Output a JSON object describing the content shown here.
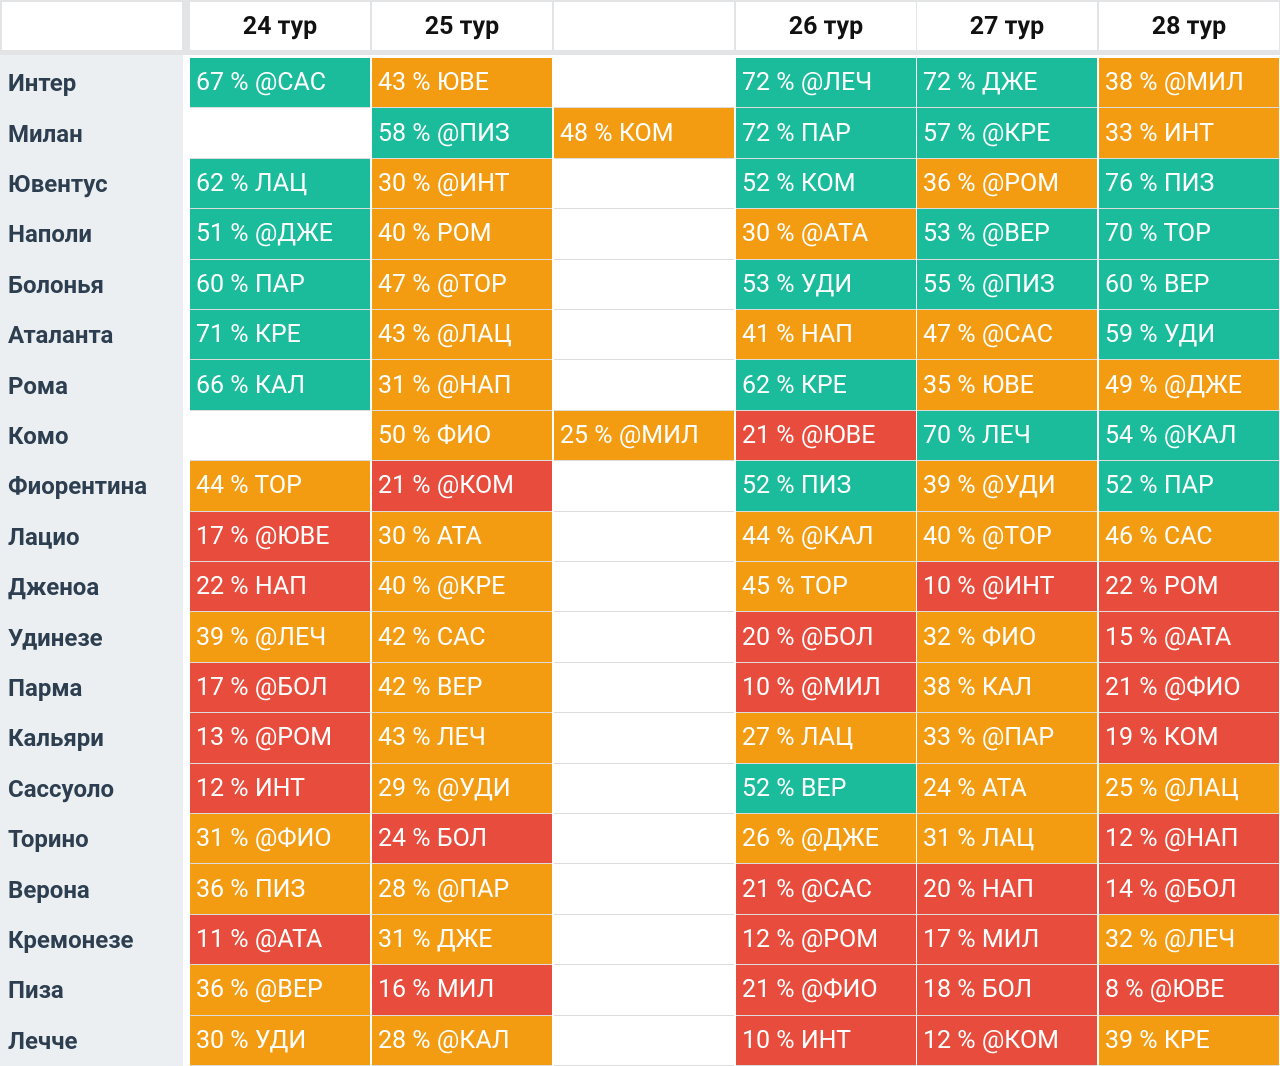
{
  "table": {
    "columns": [
      null,
      "24 тур",
      "25 тур",
      null,
      "26 тур",
      "27 тур",
      "28 тур"
    ],
    "rows": [
      {
        "team": "Интер",
        "cells": [
          {
            "text": "67 % @САС",
            "color": "#1abc9c"
          },
          {
            "text": "43 % ЮВЕ",
            "color": "#f39c12"
          },
          null,
          {
            "text": "72 % @ЛЕЧ",
            "color": "#1abc9c"
          },
          {
            "text": "72 % ДЖЕ",
            "color": "#1abc9c"
          },
          {
            "text": "38 % @МИЛ",
            "color": "#f39c12"
          }
        ]
      },
      {
        "team": "Милан",
        "cells": [
          null,
          {
            "text": "58 % @ПИЗ",
            "color": "#1abc9c"
          },
          {
            "text": "48 % КОМ",
            "color": "#f39c12"
          },
          {
            "text": "72 % ПАР",
            "color": "#1abc9c"
          },
          {
            "text": "57 % @КРЕ",
            "color": "#1abc9c"
          },
          {
            "text": "33 % ИНТ",
            "color": "#f39c12"
          }
        ]
      },
      {
        "team": "Ювентус",
        "cells": [
          {
            "text": "62 % ЛАЦ",
            "color": "#1abc9c"
          },
          {
            "text": "30 % @ИНТ",
            "color": "#f39c12"
          },
          null,
          {
            "text": "52 % КОМ",
            "color": "#1abc9c"
          },
          {
            "text": "36 % @РОМ",
            "color": "#f39c12"
          },
          {
            "text": "76 % ПИЗ",
            "color": "#1abc9c"
          }
        ]
      },
      {
        "team": "Наполи",
        "cells": [
          {
            "text": "51 % @ДЖЕ",
            "color": "#1abc9c"
          },
          {
            "text": "40 % РОМ",
            "color": "#f39c12"
          },
          null,
          {
            "text": "30 % @АТА",
            "color": "#f39c12"
          },
          {
            "text": "53 % @ВЕР",
            "color": "#1abc9c"
          },
          {
            "text": "70 % ТОР",
            "color": "#1abc9c"
          }
        ]
      },
      {
        "team": "Болонья",
        "cells": [
          {
            "text": "60 % ПАР",
            "color": "#1abc9c"
          },
          {
            "text": "47 % @ТОР",
            "color": "#f39c12"
          },
          null,
          {
            "text": "53 % УДИ",
            "color": "#1abc9c"
          },
          {
            "text": "55 % @ПИЗ",
            "color": "#1abc9c"
          },
          {
            "text": "60 % ВЕР",
            "color": "#1abc9c"
          }
        ]
      },
      {
        "team": "Аталанта",
        "cells": [
          {
            "text": "71 % КРЕ",
            "color": "#1abc9c"
          },
          {
            "text": "43 % @ЛАЦ",
            "color": "#f39c12"
          },
          null,
          {
            "text": "41 % НАП",
            "color": "#f39c12"
          },
          {
            "text": "47 % @САС",
            "color": "#f39c12"
          },
          {
            "text": "59 % УДИ",
            "color": "#1abc9c"
          }
        ]
      },
      {
        "team": "Рома",
        "cells": [
          {
            "text": "66 % КАЛ",
            "color": "#1abc9c"
          },
          {
            "text": "31 % @НАП",
            "color": "#f39c12"
          },
          null,
          {
            "text": "62 % КРЕ",
            "color": "#1abc9c"
          },
          {
            "text": "35 % ЮВЕ",
            "color": "#f39c12"
          },
          {
            "text": "49 % @ДЖЕ",
            "color": "#f39c12"
          }
        ]
      },
      {
        "team": "Комо",
        "cells": [
          null,
          {
            "text": "50 % ФИО",
            "color": "#f39c12"
          },
          {
            "text": "25 % @МИЛ",
            "color": "#f39c12"
          },
          {
            "text": "21 % @ЮВЕ",
            "color": "#e74c3c"
          },
          {
            "text": "70 % ЛЕЧ",
            "color": "#1abc9c"
          },
          {
            "text": "54 % @КАЛ",
            "color": "#1abc9c"
          }
        ]
      },
      {
        "team": "Фиорентина",
        "cells": [
          {
            "text": "44 % ТОР",
            "color": "#f39c12"
          },
          {
            "text": "21 % @КОМ",
            "color": "#e74c3c"
          },
          null,
          {
            "text": "52 % ПИЗ",
            "color": "#1abc9c"
          },
          {
            "text": "39 % @УДИ",
            "color": "#f39c12"
          },
          {
            "text": "52 % ПАР",
            "color": "#1abc9c"
          }
        ]
      },
      {
        "team": "Лацио",
        "cells": [
          {
            "text": "17 % @ЮВЕ",
            "color": "#e74c3c"
          },
          {
            "text": "30 % АТА",
            "color": "#f39c12"
          },
          null,
          {
            "text": "44 % @КАЛ",
            "color": "#f39c12"
          },
          {
            "text": "40 % @ТОР",
            "color": "#f39c12"
          },
          {
            "text": "46 % САС",
            "color": "#f39c12"
          }
        ]
      },
      {
        "team": "Дженоа",
        "cells": [
          {
            "text": "22 % НАП",
            "color": "#e74c3c"
          },
          {
            "text": "40 % @КРЕ",
            "color": "#f39c12"
          },
          null,
          {
            "text": "45 % ТОР",
            "color": "#f39c12"
          },
          {
            "text": "10 % @ИНТ",
            "color": "#e74c3c"
          },
          {
            "text": "22 % РОМ",
            "color": "#e74c3c"
          }
        ]
      },
      {
        "team": "Удинезе",
        "cells": [
          {
            "text": "39 % @ЛЕЧ",
            "color": "#f39c12"
          },
          {
            "text": "42 % САС",
            "color": "#f39c12"
          },
          null,
          {
            "text": "20 % @БОЛ",
            "color": "#e74c3c"
          },
          {
            "text": "32 % ФИО",
            "color": "#f39c12"
          },
          {
            "text": "15 % @АТА",
            "color": "#e74c3c"
          }
        ]
      },
      {
        "team": "Парма",
        "cells": [
          {
            "text": "17 % @БОЛ",
            "color": "#e74c3c"
          },
          {
            "text": "42 % ВЕР",
            "color": "#f39c12"
          },
          null,
          {
            "text": "10 % @МИЛ",
            "color": "#e74c3c"
          },
          {
            "text": "38 % КАЛ",
            "color": "#f39c12"
          },
          {
            "text": "21 % @ФИО",
            "color": "#e74c3c"
          }
        ]
      },
      {
        "team": "Кальяри",
        "cells": [
          {
            "text": "13 % @РОМ",
            "color": "#e74c3c"
          },
          {
            "text": "43 % ЛЕЧ",
            "color": "#f39c12"
          },
          null,
          {
            "text": "27 % ЛАЦ",
            "color": "#f39c12"
          },
          {
            "text": "33 % @ПАР",
            "color": "#f39c12"
          },
          {
            "text": "19 % КОМ",
            "color": "#e74c3c"
          }
        ]
      },
      {
        "team": "Сассуоло",
        "cells": [
          {
            "text": "12 % ИНТ",
            "color": "#e74c3c"
          },
          {
            "text": "29 % @УДИ",
            "color": "#f39c12"
          },
          null,
          {
            "text": "52 % ВЕР",
            "color": "#1abc9c"
          },
          {
            "text": "24 % АТА",
            "color": "#f39c12"
          },
          {
            "text": "25 % @ЛАЦ",
            "color": "#f39c12"
          }
        ]
      },
      {
        "team": "Торино",
        "cells": [
          {
            "text": "31 % @ФИО",
            "color": "#f39c12"
          },
          {
            "text": "24 % БОЛ",
            "color": "#e74c3c"
          },
          null,
          {
            "text": "26 % @ДЖЕ",
            "color": "#f39c12"
          },
          {
            "text": "31 % ЛАЦ",
            "color": "#f39c12"
          },
          {
            "text": "12 % @НАП",
            "color": "#e74c3c"
          }
        ]
      },
      {
        "team": "Верона",
        "cells": [
          {
            "text": "36 % ПИЗ",
            "color": "#f39c12"
          },
          {
            "text": "28 % @ПАР",
            "color": "#f39c12"
          },
          null,
          {
            "text": "21 % @САС",
            "color": "#e74c3c"
          },
          {
            "text": "20 % НАП",
            "color": "#e74c3c"
          },
          {
            "text": "14 % @БОЛ",
            "color": "#e74c3c"
          }
        ]
      },
      {
        "team": "Кремонезе",
        "cells": [
          {
            "text": "11 % @АТА",
            "color": "#e74c3c"
          },
          {
            "text": "31 % ДЖЕ",
            "color": "#f39c12"
          },
          null,
          {
            "text": "12 % @РОМ",
            "color": "#e74c3c"
          },
          {
            "text": "17 % МИЛ",
            "color": "#e74c3c"
          },
          {
            "text": "32 % @ЛЕЧ",
            "color": "#f39c12"
          }
        ]
      },
      {
        "team": "Пиза",
        "cells": [
          {
            "text": "36 % @ВЕР",
            "color": "#f39c12"
          },
          {
            "text": "16 % МИЛ",
            "color": "#e74c3c"
          },
          null,
          {
            "text": "21 % @ФИО",
            "color": "#e74c3c"
          },
          {
            "text": "18 % БОЛ",
            "color": "#e74c3c"
          },
          {
            "text": "8 % @ЮВЕ",
            "color": "#e74c3c"
          }
        ]
      },
      {
        "team": "Лечче",
        "cells": [
          {
            "text": "30 % УДИ",
            "color": "#f39c12"
          },
          {
            "text": "28 % @КАЛ",
            "color": "#f39c12"
          },
          null,
          {
            "text": "10 % ИНТ",
            "color": "#e74c3c"
          },
          {
            "text": "12 % @КОМ",
            "color": "#e74c3c"
          },
          {
            "text": "39 % КРЕ",
            "color": "#f39c12"
          }
        ]
      }
    ]
  }
}
